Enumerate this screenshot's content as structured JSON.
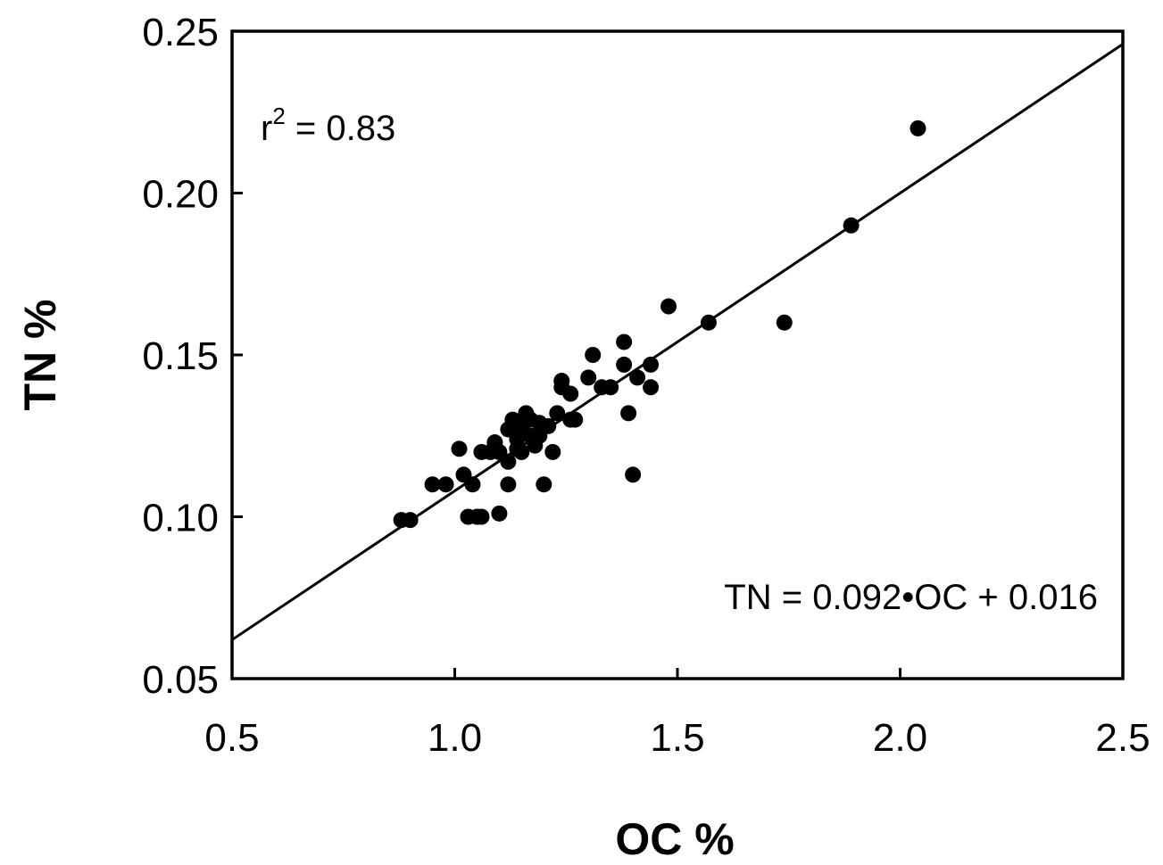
{
  "chart_data": {
    "type": "scatter",
    "xlabel": "OC %",
    "ylabel": "TN %",
    "xlim": [
      0.5,
      2.5
    ],
    "ylim": [
      0.05,
      0.25
    ],
    "xticks": [
      "0.5",
      "1.0",
      "1.5",
      "2.0",
      "2.5"
    ],
    "yticks": [
      "0.05",
      "0.10",
      "0.15",
      "0.20",
      "0.25"
    ],
    "grid": false,
    "annotations": {
      "r_squared_label": "r",
      "r_squared_sup": "2",
      "r_squared_value": " = 0.83",
      "equation": "TN = 0.092•OC + 0.016"
    },
    "fit_line": {
      "slope": 0.092,
      "intercept": 0.016
    },
    "points": [
      [
        0.88,
        0.099
      ],
      [
        0.9,
        0.099
      ],
      [
        0.95,
        0.11
      ],
      [
        0.98,
        0.11
      ],
      [
        1.01,
        0.121
      ],
      [
        1.02,
        0.113
      ],
      [
        1.04,
        0.11
      ],
      [
        1.03,
        0.1
      ],
      [
        1.05,
        0.1
      ],
      [
        1.06,
        0.1
      ],
      [
        1.06,
        0.12
      ],
      [
        1.08,
        0.12
      ],
      [
        1.09,
        0.123
      ],
      [
        1.1,
        0.12
      ],
      [
        1.1,
        0.101
      ],
      [
        1.12,
        0.11
      ],
      [
        1.12,
        0.117
      ],
      [
        1.12,
        0.127
      ],
      [
        1.13,
        0.13
      ],
      [
        1.14,
        0.121
      ],
      [
        1.14,
        0.124
      ],
      [
        1.15,
        0.128
      ],
      [
        1.15,
        0.12
      ],
      [
        1.16,
        0.132
      ],
      [
        1.17,
        0.125
      ],
      [
        1.17,
        0.13
      ],
      [
        1.18,
        0.122
      ],
      [
        1.19,
        0.129
      ],
      [
        1.19,
        0.125
      ],
      [
        1.2,
        0.11
      ],
      [
        1.21,
        0.128
      ],
      [
        1.22,
        0.12
      ],
      [
        1.23,
        0.132
      ],
      [
        1.24,
        0.14
      ],
      [
        1.24,
        0.142
      ],
      [
        1.26,
        0.138
      ],
      [
        1.26,
        0.13
      ],
      [
        1.27,
        0.13
      ],
      [
        1.3,
        0.143
      ],
      [
        1.31,
        0.15
      ],
      [
        1.33,
        0.14
      ],
      [
        1.35,
        0.14
      ],
      [
        1.38,
        0.147
      ],
      [
        1.38,
        0.154
      ],
      [
        1.39,
        0.132
      ],
      [
        1.4,
        0.113
      ],
      [
        1.41,
        0.143
      ],
      [
        1.44,
        0.14
      ],
      [
        1.44,
        0.147
      ],
      [
        1.48,
        0.165
      ],
      [
        1.57,
        0.16
      ],
      [
        1.74,
        0.16
      ],
      [
        1.89,
        0.19
      ],
      [
        2.04,
        0.22
      ]
    ]
  }
}
